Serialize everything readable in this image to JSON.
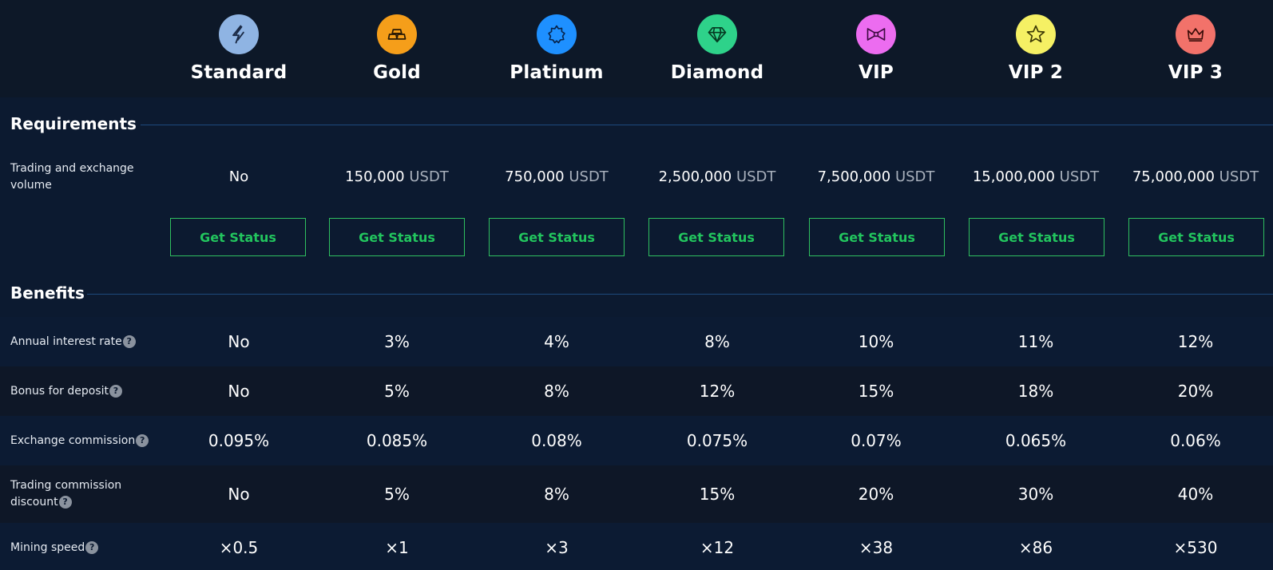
{
  "tiers": [
    {
      "name": "Standard",
      "icon": "bolt-icon",
      "color": "#8fb4e3"
    },
    {
      "name": "Gold",
      "icon": "gold-bars-icon",
      "color": "#f59e1a"
    },
    {
      "name": "Platinum",
      "icon": "star-badge-icon",
      "color": "#1e90ff"
    },
    {
      "name": "Diamond",
      "icon": "diamond-icon",
      "color": "#2ed28a"
    },
    {
      "name": "VIP",
      "icon": "bow-tie-icon",
      "color": "#ec6cf0"
    },
    {
      "name": "VIP 2",
      "icon": "star-icon",
      "color": "#f5f064"
    },
    {
      "name": "VIP 3",
      "icon": "crown-icon",
      "color": "#f2726a"
    }
  ],
  "requirements": {
    "title": "Requirements",
    "volume_label_line1": "Trading and exchange",
    "volume_label_line2": "volume",
    "volume_values": [
      {
        "amount": "No",
        "unit": ""
      },
      {
        "amount": "150,000",
        "unit": "USDT"
      },
      {
        "amount": "750,000",
        "unit": "USDT"
      },
      {
        "amount": "2,500,000",
        "unit": "USDT"
      },
      {
        "amount": "7,500,000",
        "unit": "USDT"
      },
      {
        "amount": "15,000,000",
        "unit": "USDT"
      },
      {
        "amount": "75,000,000",
        "unit": "USDT"
      }
    ],
    "button_label": "Get Status"
  },
  "benefits": {
    "title": "Benefits",
    "help_glyph": "?",
    "rows": [
      {
        "label": "Annual interest rate",
        "label_line2": "",
        "values": [
          "No",
          "3%",
          "4%",
          "8%",
          "10%",
          "11%",
          "12%"
        ]
      },
      {
        "label": "Bonus for deposit",
        "label_line2": "",
        "values": [
          "No",
          "5%",
          "8%",
          "12%",
          "15%",
          "18%",
          "20%"
        ]
      },
      {
        "label": "Exchange commission",
        "label_line2": "",
        "values": [
          "0.095%",
          "0.085%",
          "0.08%",
          "0.075%",
          "0.07%",
          "0.065%",
          "0.06%"
        ]
      },
      {
        "label": "Trading commission",
        "label_line2": "discount",
        "values": [
          "No",
          "5%",
          "8%",
          "15%",
          "20%",
          "30%",
          "40%"
        ]
      },
      {
        "label": "Mining speed",
        "label_line2": "",
        "values": [
          "×0.5",
          "×1",
          "×3",
          "×12",
          "×38",
          "×86",
          "×530"
        ]
      }
    ]
  },
  "colors": {
    "button_border": "#2fbf5f",
    "button_text": "#22c55e",
    "row_dark": "#0e1727",
    "row_light": "#0c1b33"
  }
}
